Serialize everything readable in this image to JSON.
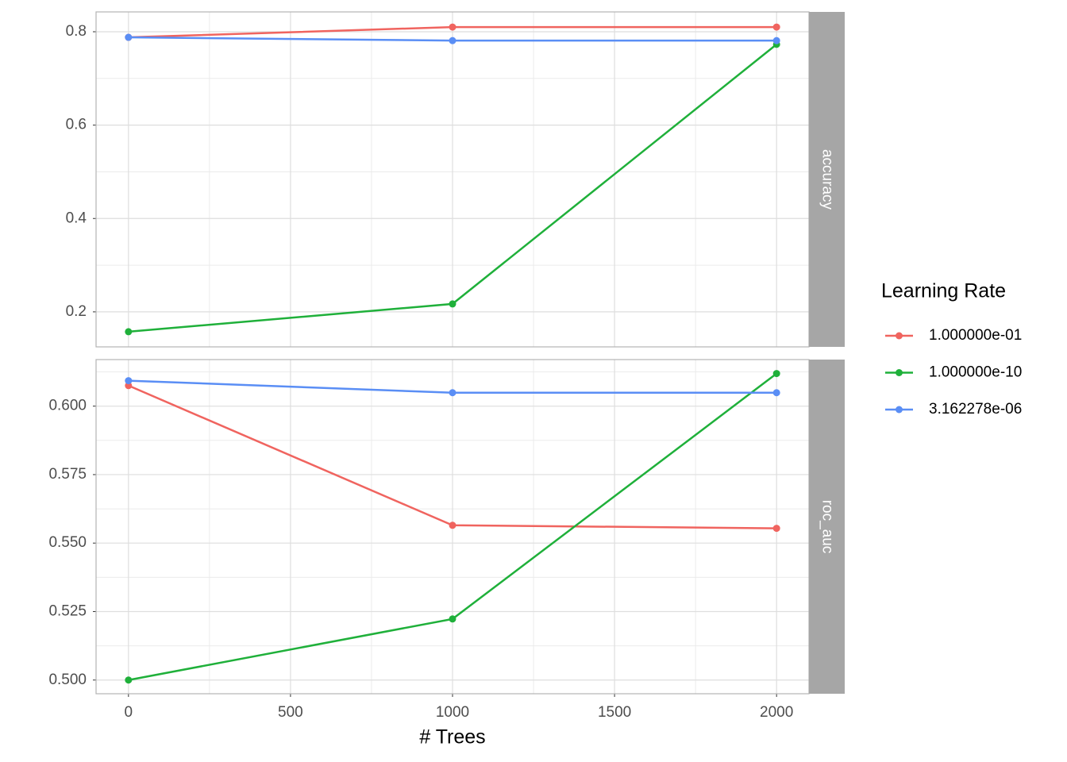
{
  "chart_data": [
    {
      "type": "line",
      "strip_label": "accuracy",
      "legend_title": "Learning Rate",
      "x": [
        0,
        1000,
        2000
      ],
      "xlim": [
        -100,
        2100
      ],
      "xticks": [
        0,
        500,
        1000,
        1500,
        2000
      ],
      "ylim": [
        0.125,
        0.8425
      ],
      "yticks": [
        0.2,
        0.4,
        0.6,
        0.8
      ],
      "grid": true,
      "series": [
        {
          "name": "1.000000e-01",
          "color": "#f0645f",
          "values": [
            0.788,
            0.81,
            0.81
          ]
        },
        {
          "name": "1.000000e-10",
          "color": "#1fb03a",
          "values": [
            0.1575,
            0.217,
            0.773
          ]
        },
        {
          "name": "3.162278e-06",
          "color": "#5a8ef5",
          "values": [
            0.788,
            0.781,
            0.781
          ]
        }
      ]
    },
    {
      "type": "line",
      "strip_label": "roc_auc",
      "xlabel": "# Trees",
      "x": [
        0,
        1000,
        2000
      ],
      "xlim": [
        -100,
        2100
      ],
      "xticks": [
        0,
        500,
        1000,
        1500,
        2000
      ],
      "ylim": [
        0.495,
        0.617
      ],
      "yticks": [
        {
          "value": 0.5,
          "label": "0.500"
        },
        {
          "value": 0.525,
          "label": "0.525"
        },
        {
          "value": 0.55,
          "label": "0.550"
        },
        {
          "value": 0.575,
          "label": "0.575"
        },
        {
          "value": 0.6,
          "label": "0.600"
        }
      ],
      "grid": true,
      "series": [
        {
          "color": "#f0645f",
          "values": [
            0.6075,
            0.5565,
            0.5554
          ]
        },
        {
          "color": "#1fb03a",
          "values": [
            0.5,
            0.5223,
            0.6119
          ]
        },
        {
          "color": "#5a8ef5",
          "values": [
            0.6093,
            0.6049,
            0.6049
          ]
        }
      ]
    }
  ]
}
